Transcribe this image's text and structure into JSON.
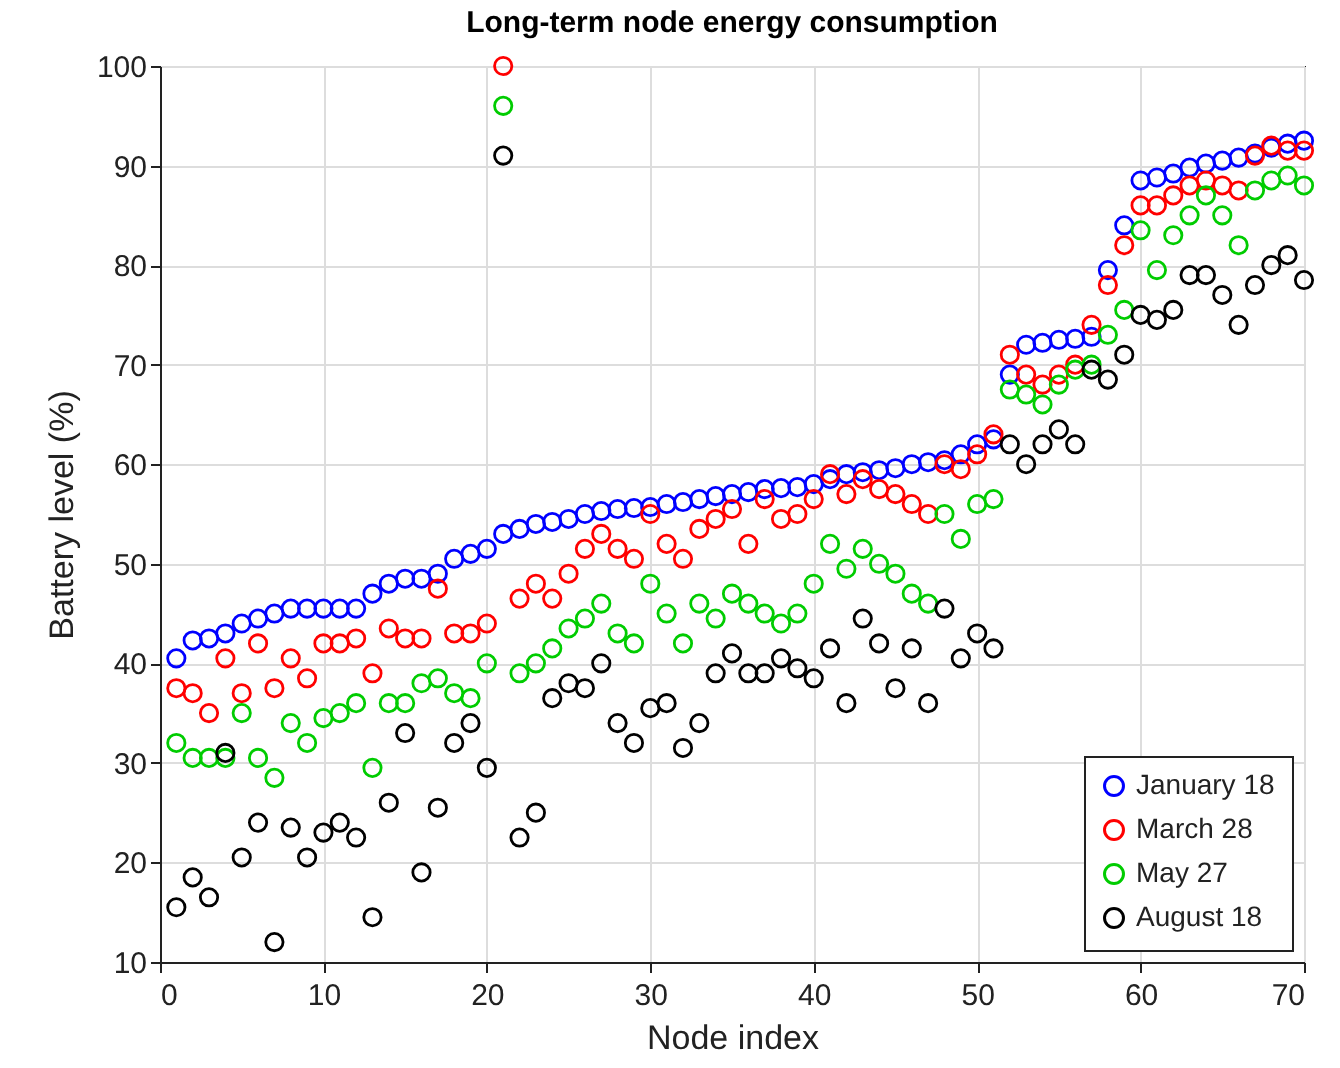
{
  "chart_data": {
    "type": "scatter",
    "title": "Long-term node energy consumption",
    "xlabel": "Node index",
    "ylabel": "Battery level (%)",
    "x": [
      1,
      2,
      3,
      4,
      5,
      6,
      7,
      8,
      9,
      10,
      11,
      12,
      13,
      14,
      15,
      16,
      17,
      18,
      19,
      20,
      21,
      22,
      23,
      24,
      25,
      26,
      27,
      28,
      29,
      30,
      31,
      32,
      33,
      34,
      35,
      36,
      37,
      38,
      39,
      40,
      41,
      42,
      43,
      44,
      45,
      46,
      47,
      48,
      49,
      50,
      51,
      52,
      53,
      54,
      55,
      56,
      57,
      58,
      59,
      60,
      61,
      62,
      63,
      64,
      65,
      66,
      67,
      68,
      69,
      70
    ],
    "series": [
      {
        "name": "January 18",
        "color": "#0000ff",
        "values": [
          40.5,
          42.3,
          42.5,
          43,
          44,
          44.5,
          45,
          45.5,
          45.5,
          45.5,
          45.5,
          45.5,
          47,
          48,
          48.5,
          48.5,
          49,
          50.5,
          51,
          51.5,
          53,
          53.5,
          54,
          54.2,
          54.5,
          55,
          55.3,
          55.5,
          55.6,
          55.7,
          56,
          56.2,
          56.5,
          56.8,
          57,
          57.2,
          57.5,
          57.6,
          57.7,
          58,
          58.5,
          59,
          59.2,
          59.4,
          59.6,
          60,
          60.2,
          60.4,
          61,
          62,
          62.5,
          69,
          72,
          72.2,
          72.5,
          72.6,
          72.8,
          79.5,
          84,
          88.5,
          88.8,
          89.2,
          89.8,
          90.2,
          90.5,
          90.8,
          91.2,
          91.8,
          92.2,
          92.5
        ]
      },
      {
        "name": "March 28",
        "color": "#ff0000",
        "values": [
          37.5,
          37,
          35,
          40.5,
          37,
          42,
          37.5,
          40.5,
          38.5,
          42,
          42,
          42.5,
          39,
          43.5,
          42.5,
          42.5,
          47.5,
          43,
          43,
          44,
          100,
          46.5,
          48,
          46.5,
          49,
          51.5,
          53,
          51.5,
          50.5,
          55,
          52,
          50.5,
          53.5,
          54.5,
          55.5,
          52,
          56.5,
          54.5,
          55,
          56.5,
          59,
          57,
          58.5,
          57.5,
          57,
          56,
          55,
          60,
          59.5,
          61,
          63,
          71,
          69,
          68,
          69,
          70,
          74,
          78,
          82,
          86,
          86,
          87,
          88,
          88.5,
          88,
          87.5,
          91,
          92,
          91.5,
          91.5
        ]
      },
      {
        "name": "May 27",
        "color": "#00cc00",
        "values": [
          32,
          30.5,
          30.5,
          30.5,
          35,
          30.5,
          28.5,
          34,
          32,
          34.5,
          35,
          36,
          29.5,
          36,
          36,
          38,
          38.5,
          37,
          36.5,
          40,
          96,
          39,
          40,
          41.5,
          43.5,
          44.5,
          46,
          43,
          42,
          48,
          45,
          42,
          46,
          44.5,
          47,
          46,
          45,
          44,
          45,
          48,
          52,
          49.5,
          51.5,
          50,
          49,
          47,
          46,
          55,
          52.5,
          56,
          56.5,
          67.5,
          67,
          66,
          68,
          69.5,
          70,
          73,
          75.5,
          83.5,
          79.5,
          83,
          85,
          87,
          85,
          82,
          87.5,
          88.5,
          89,
          88
        ]
      },
      {
        "name": "August 18",
        "color": "#000000",
        "values": [
          15.5,
          18.5,
          16.5,
          31,
          20.5,
          24,
          12,
          23.5,
          20.5,
          23,
          24,
          22.5,
          14.5,
          26,
          33,
          19,
          25.5,
          32,
          34,
          29.5,
          91,
          22.5,
          25,
          36.5,
          38,
          37.5,
          40,
          34,
          32,
          35.5,
          36,
          31.5,
          34,
          39,
          41,
          39,
          39,
          40.5,
          39.5,
          38.5,
          41.5,
          36,
          44.5,
          42,
          37.5,
          41.5,
          36,
          45.5,
          40.5,
          43,
          41.5,
          62,
          60,
          62,
          63.5,
          62,
          69.5,
          68.5,
          71,
          75,
          74.5,
          75.5,
          79,
          79,
          77,
          74,
          78,
          80,
          81,
          78.5
        ]
      }
    ],
    "xlim": [
      0,
      70
    ],
    "xticks": [
      0,
      10,
      20,
      30,
      40,
      50,
      60,
      70
    ],
    "ylim": [
      10,
      100
    ],
    "yticks": [
      10,
      20,
      30,
      40,
      50,
      60,
      70,
      80,
      90,
      100
    ],
    "grid": true,
    "legend": "bottom right",
    "marker": "circle"
  }
}
